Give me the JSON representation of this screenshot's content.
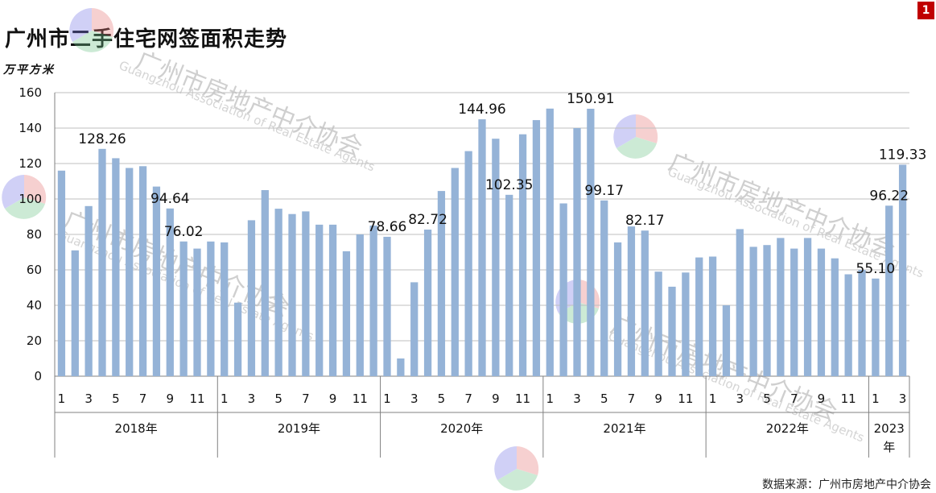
{
  "page_number": "1",
  "title": "广州市二手住宅网签面积走势",
  "unit_label": "万平方米",
  "source": "数据来源：广州市房地产中介协会",
  "watermark": {
    "name": "广州市房地产中介协会",
    "english": "Guangzhou Association of Real Estate Agents"
  },
  "colors": {
    "bar": "#95b3d7",
    "grid": "#bfbfbf",
    "axis": "#808080",
    "badge": "#c00000"
  },
  "chart_data": {
    "type": "bar",
    "ylim": [
      0,
      160
    ],
    "yticks": [
      0,
      20,
      40,
      60,
      80,
      100,
      120,
      140,
      160
    ],
    "grid": true,
    "month_ticks": [
      "1",
      "3",
      "5",
      "7",
      "9",
      "11"
    ],
    "years": [
      {
        "label": "2018年",
        "values": [
          116,
          71,
          96,
          128.26,
          123,
          117.5,
          118.5,
          107,
          94.64,
          76.02,
          72,
          76
        ]
      },
      {
        "label": "2019年",
        "values": [
          75.5,
          41.5,
          88,
          105,
          94.5,
          91.5,
          93,
          85.5,
          85.5,
          70.5,
          80,
          85
        ]
      },
      {
        "label": "2020年",
        "values": [
          78.66,
          10,
          53,
          82.72,
          104.5,
          117.5,
          127,
          144.96,
          134,
          102.35,
          136.5,
          144.5
        ]
      },
      {
        "label": "2021年",
        "values": [
          151,
          97.5,
          140,
          150.91,
          99.17,
          75.5,
          84.5,
          82.17,
          59,
          50.5,
          58.5,
          67
        ]
      },
      {
        "label": "2022年",
        "values": [
          67.5,
          40,
          83,
          73,
          74,
          78,
          72,
          78,
          72,
          66.5,
          57.5,
          60
        ]
      },
      {
        "label": "2023年",
        "values": [
          55.1,
          96.22,
          119.33
        ]
      }
    ],
    "data_labels": [
      {
        "text": "128.26",
        "year": 0,
        "month": 4
      },
      {
        "text": "94.64",
        "year": 0,
        "month": 9
      },
      {
        "text": "76.02",
        "year": 0,
        "month": 10
      },
      {
        "text": "78.66",
        "year": 2,
        "month": 1
      },
      {
        "text": "82.72",
        "year": 2,
        "month": 4
      },
      {
        "text": "144.96",
        "year": 2,
        "month": 8
      },
      {
        "text": "102.35",
        "year": 2,
        "month": 10
      },
      {
        "text": "150.91",
        "year": 3,
        "month": 4
      },
      {
        "text": "99.17",
        "year": 3,
        "month": 5
      },
      {
        "text": "82.17",
        "year": 3,
        "month": 8
      },
      {
        "text": "55.10",
        "year": 5,
        "month": 1
      },
      {
        "text": "96.22",
        "year": 5,
        "month": 2
      },
      {
        "text": "119.33",
        "year": 5,
        "month": 3
      }
    ]
  }
}
